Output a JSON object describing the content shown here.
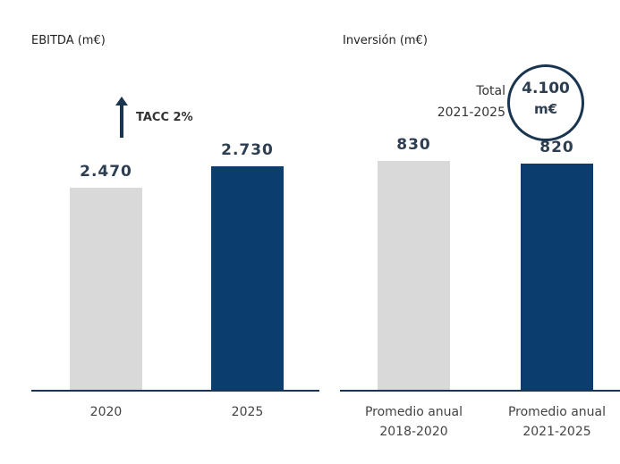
{
  "chart_data": [
    {
      "type": "bar",
      "title": "EBITDA (m€)",
      "categories": [
        "2020",
        "2025"
      ],
      "values": [
        2470,
        2730
      ],
      "value_labels": [
        "2.470",
        "2.730"
      ],
      "colors": [
        "#d9d9d9",
        "#0b3d6e"
      ],
      "annotation": "TACC 2%"
    },
    {
      "type": "bar",
      "title": "Inversión (m€)",
      "categories": [
        "Promedio anual\n2018-2020",
        "Promedio anual\n2021-2025"
      ],
      "values": [
        830,
        820
      ],
      "colors": [
        "#d9d9d9",
        "#0b3d6e"
      ],
      "annotation": {
        "label": "Total\n2021-2025",
        "value": "4.100",
        "unit": "m€"
      }
    }
  ]
}
